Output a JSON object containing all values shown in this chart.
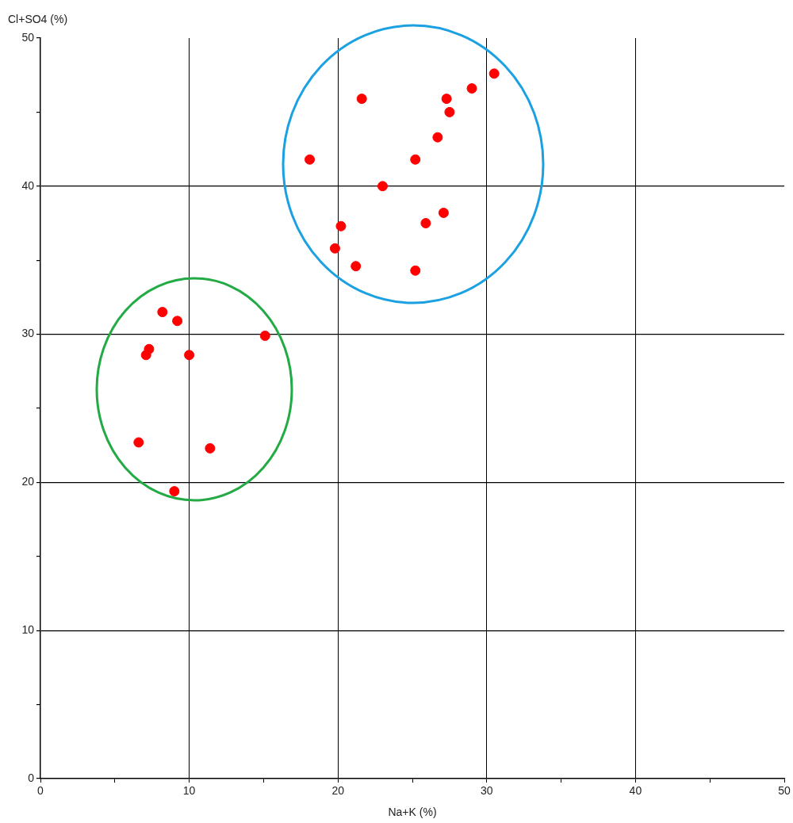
{
  "chart_data": {
    "type": "scatter",
    "xlabel": "Na+K (%)",
    "ylabel": "Cl+SO4 (%)",
    "x": [
      30.5,
      29.0,
      27.3,
      27.5,
      21.6,
      26.7,
      18.1,
      25.2,
      23.0,
      20.2,
      25.9,
      27.1,
      19.8,
      21.2,
      25.2,
      8.2,
      9.2,
      15.1,
      7.3,
      7.1,
      10.0,
      6.6,
      11.4,
      9.0
    ],
    "values": [
      47.6,
      46.6,
      45.9,
      45.0,
      45.9,
      43.3,
      41.8,
      41.8,
      40.0,
      37.3,
      37.5,
      38.2,
      35.8,
      34.6,
      34.3,
      31.5,
      30.9,
      29.9,
      29.0,
      28.6,
      28.6,
      22.7,
      22.3,
      19.4
    ],
    "color": "#ff0000",
    "marker": "circle",
    "xlim": [
      0,
      50
    ],
    "ylim": [
      0,
      50
    ],
    "xticks": [
      0,
      {
        "value": 5,
        "label": null
      },
      10,
      {
        "value": 15,
        "label": null
      },
      20,
      {
        "value": 25,
        "label": null
      },
      30,
      {
        "value": 35,
        "label": null
      },
      40,
      {
        "value": 45,
        "label": null
      },
      50
    ],
    "yticks": [
      0,
      {
        "value": 5,
        "label": null
      },
      10,
      {
        "value": 15,
        "label": null
      },
      20,
      {
        "value": 25,
        "label": null
      },
      30,
      {
        "value": 35,
        "label": null
      },
      40,
      {
        "value": 45,
        "label": null
      },
      50
    ],
    "grid": true,
    "legend": false
  }
}
